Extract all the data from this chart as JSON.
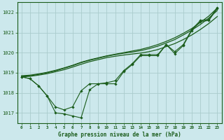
{
  "background_color": "#cce8ec",
  "grid_color": "#aacccc",
  "line_color": "#1a5c1a",
  "marker_color": "#1a5c1a",
  "xlabel": "Graphe pression niveau de la mer (hPa)",
  "ylim": [
    1016.5,
    1022.5
  ],
  "xlim": [
    -0.5,
    23.5
  ],
  "yticks": [
    1017,
    1018,
    1019,
    1020,
    1021,
    1022
  ],
  "xticks": [
    0,
    1,
    2,
    3,
    4,
    5,
    6,
    7,
    8,
    9,
    10,
    11,
    12,
    13,
    14,
    15,
    16,
    17,
    18,
    19,
    20,
    21,
    22,
    23
  ],
  "line1_x": [
    0,
    1,
    2,
    3,
    4,
    5,
    6,
    7,
    8,
    9,
    10,
    11,
    12,
    13,
    14,
    15,
    16,
    17,
    18,
    19,
    20,
    21,
    22,
    23
  ],
  "line1_y": [
    1018.8,
    1018.7,
    1018.35,
    1017.85,
    1017.0,
    1016.95,
    1016.85,
    1016.75,
    1018.15,
    1018.45,
    1018.45,
    1018.45,
    1019.05,
    1019.4,
    1019.85,
    1019.85,
    1019.85,
    1020.4,
    1019.95,
    1020.35,
    1021.1,
    1021.55,
    1021.6,
    1022.2
  ],
  "line2_x": [
    0,
    1,
    2,
    3,
    4,
    5,
    6,
    7,
    8,
    9,
    10,
    11,
    12,
    13,
    14,
    15,
    16,
    17,
    18,
    19,
    20,
    21,
    22,
    23
  ],
  "line2_y": [
    1018.8,
    1018.7,
    1018.35,
    1017.85,
    1017.3,
    1017.15,
    1017.3,
    1018.1,
    1018.45,
    1018.45,
    1018.5,
    1018.6,
    1019.1,
    1019.45,
    1019.9,
    1019.9,
    1019.9,
    1020.4,
    1020.05,
    1020.4,
    1021.15,
    1021.6,
    1021.65,
    1022.25
  ],
  "smooth1_x": [
    0,
    1,
    2,
    3,
    4,
    5,
    6,
    7,
    8,
    9,
    10,
    11,
    12,
    13,
    14,
    15,
    16,
    17,
    18,
    19,
    20,
    21,
    22,
    23
  ],
  "smooth1_y": [
    1018.8,
    1018.82,
    1018.88,
    1018.95,
    1019.05,
    1019.15,
    1019.28,
    1019.42,
    1019.55,
    1019.65,
    1019.75,
    1019.82,
    1019.88,
    1019.93,
    1019.98,
    1020.05,
    1020.15,
    1020.3,
    1020.45,
    1020.65,
    1020.88,
    1021.15,
    1021.45,
    1021.8
  ],
  "smooth2_x": [
    0,
    1,
    2,
    3,
    4,
    5,
    6,
    7,
    8,
    9,
    10,
    11,
    12,
    13,
    14,
    15,
    16,
    17,
    18,
    19,
    20,
    21,
    22,
    23
  ],
  "smooth2_y": [
    1018.82,
    1018.85,
    1018.92,
    1019.0,
    1019.1,
    1019.22,
    1019.35,
    1019.5,
    1019.62,
    1019.72,
    1019.82,
    1019.9,
    1019.97,
    1020.03,
    1020.1,
    1020.2,
    1020.32,
    1020.48,
    1020.65,
    1020.88,
    1021.12,
    1021.4,
    1021.72,
    1022.1
  ],
  "smooth3_x": [
    0,
    1,
    2,
    3,
    4,
    5,
    6,
    7,
    8,
    9,
    10,
    11,
    12,
    13,
    14,
    15,
    16,
    17,
    18,
    19,
    20,
    21,
    22,
    23
  ],
  "smooth3_y": [
    1018.85,
    1018.88,
    1018.94,
    1019.02,
    1019.12,
    1019.24,
    1019.37,
    1019.52,
    1019.64,
    1019.74,
    1019.84,
    1019.92,
    1020.0,
    1020.08,
    1020.16,
    1020.27,
    1020.4,
    1020.56,
    1020.74,
    1020.96,
    1021.2,
    1021.5,
    1021.82,
    1022.22
  ]
}
